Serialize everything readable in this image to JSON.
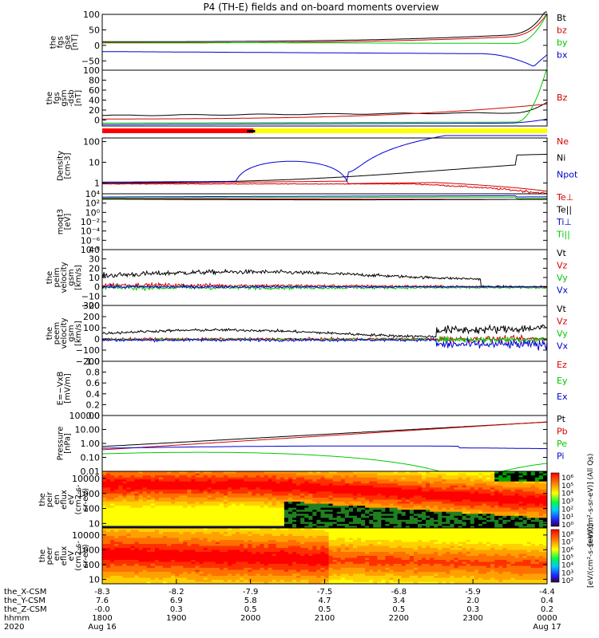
{
  "title": "P4 (TH-E) fields and on-board moments overview",
  "colors": {
    "black": "#000000",
    "red": "#d40000",
    "green": "#00c800",
    "blue": "#0000d0",
    "bar_red": "#ff0000",
    "bar_yellow": "#ffff00"
  },
  "time_axis": {
    "rows": [
      {
        "label": "the_X-CSM",
        "values": [
          "-8.3",
          "-8.2",
          "-7.9",
          "-7.5",
          "-6.8",
          "-5.9",
          "-4.4"
        ]
      },
      {
        "label": "the_Y-CSM",
        "values": [
          "7.6",
          "6.9",
          "5.8",
          "4.7",
          "3.4",
          "2.0",
          "0.4"
        ]
      },
      {
        "label": "the_Z-CSM",
        "values": [
          "-0.0",
          "0.3",
          "0.5",
          "0.5",
          "0.5",
          "0.3",
          "0.2"
        ]
      },
      {
        "label": "hhmm",
        "values": [
          "1800",
          "1900",
          "2000",
          "2100",
          "2200",
          "2300",
          "0000"
        ]
      },
      {
        "label": "2020",
        "values": [
          "Aug 16",
          "",
          "",
          "",
          "",
          "",
          "Aug 17"
        ]
      }
    ]
  },
  "chart_data": [
    {
      "type": "line",
      "id": "fgs",
      "ylabel": [
        "the",
        "fgs",
        "gse",
        "[nT]"
      ],
      "ylim": [
        -80,
        100
      ],
      "yticks": [
        "100",
        "50",
        "0",
        "−50"
      ],
      "ytick_values": [
        100,
        50,
        0,
        -50
      ],
      "legend": [
        "Bt",
        "bz",
        "by",
        "bx"
      ],
      "legend_colors": [
        "black",
        "red",
        "green",
        "blue"
      ]
    },
    {
      "type": "line",
      "id": "fgs-gsm",
      "ylabel": [
        "the",
        "fgs",
        "gsm",
        "-dsb",
        "[nT]"
      ],
      "ylim": [
        -12,
        100
      ],
      "yticks": [
        "100",
        "80",
        "60",
        "40",
        "20",
        "0"
      ],
      "ytick_values": [
        100,
        80,
        60,
        40,
        20,
        0
      ],
      "legend": [
        "Bz"
      ],
      "legend_colors": [
        "red"
      ]
    },
    {
      "type": "line",
      "id": "density",
      "ylabel": [
        "Density",
        "[cm-3]"
      ],
      "scale": "log",
      "ylim": [
        0.3,
        150
      ],
      "yticks": [
        "100",
        "10",
        "1"
      ],
      "ytick_values": [
        100,
        10,
        1
      ],
      "legend": [
        "Ne",
        "Ni",
        "Npot"
      ],
      "legend_colors": [
        "red",
        "black",
        "blue"
      ]
    },
    {
      "type": "line",
      "id": "temperature",
      "ylabel": [
        "moqt3",
        "[eV]"
      ],
      "scale": "log",
      "ylim": [
        1e-08,
        10000
      ],
      "yticks": [
        "10⁴",
        "10²",
        "10⁰",
        "10⁻²",
        "10⁻⁴",
        "10⁻⁶",
        "10⁻⁸"
      ],
      "ytick_values": [
        10000,
        100,
        1,
        0.01,
        0.0001,
        1e-06,
        1e-08
      ],
      "legend": [
        "Te⊥",
        "Te||",
        "Ti⊥",
        "Ti||"
      ],
      "legend_colors": [
        "red",
        "black",
        "blue",
        "green"
      ]
    },
    {
      "type": "line",
      "id": "peim-velocity",
      "ylabel": [
        "the",
        "peim",
        "velocity",
        "gsm",
        "[km/s]"
      ],
      "ylim": [
        -20,
        40
      ],
      "yticks": [
        "40",
        "30",
        "20",
        "10",
        "0",
        "−10",
        "−20"
      ],
      "ytick_values": [
        40,
        30,
        20,
        10,
        0,
        -10,
        -20
      ],
      "legend": [
        "Vt",
        "Vz",
        "Vy",
        "Vx"
      ],
      "legend_colors": [
        "black",
        "red",
        "green",
        "blue"
      ]
    },
    {
      "type": "line",
      "id": "peem-velocity",
      "ylabel": [
        "the",
        "peem",
        "velocity",
        "gsm",
        "[km/s]"
      ],
      "ylim": [
        -200,
        300
      ],
      "yticks": [
        "300",
        "200",
        "100",
        "0",
        "−100",
        "−200"
      ],
      "ytick_values": [
        300,
        200,
        100,
        0,
        -100,
        -200
      ],
      "legend": [
        "Vt",
        "Vz",
        "Vy",
        "Vx"
      ],
      "legend_colors": [
        "black",
        "red",
        "green",
        "blue"
      ]
    },
    {
      "type": "line",
      "id": "efield",
      "ylabel": [
        "E=−VxB",
        "[mV/m]"
      ],
      "ylim": [
        0,
        1
      ],
      "yticks": [
        "1.0",
        "0.8",
        "0.6",
        "0.4",
        "0.2",
        "0.0"
      ],
      "ytick_values": [
        1,
        0.8,
        0.6,
        0.4,
        0.2,
        0
      ],
      "legend": [
        "Ez",
        "Ey",
        "Ex"
      ],
      "legend_colors": [
        "red",
        "green",
        "blue"
      ]
    },
    {
      "type": "line",
      "id": "pressure",
      "ylabel": [
        "Pressure",
        "[nPa]"
      ],
      "scale": "log",
      "ylim": [
        0.01,
        100
      ],
      "yticks": [
        "100.00",
        "10.00",
        "1.00",
        "0.10",
        "0.01"
      ],
      "ytick_values": [
        100,
        10,
        1,
        0.1,
        0.01
      ],
      "legend": [
        "Pt",
        "Pb",
        "Pe",
        "Pi"
      ],
      "legend_colors": [
        "black",
        "red",
        "green",
        "blue"
      ]
    },
    {
      "type": "heatmap",
      "id": "peir",
      "ylabel": [
        "the",
        "peir",
        "en",
        "eflux",
        "eV",
        "(cm2-s-",
        "sr-eV)"
      ],
      "yticks": [
        "10000",
        "1000",
        "100",
        "10"
      ],
      "ytick_values": [
        10000,
        1000,
        100,
        10
      ],
      "colorbar_label": "[eV/(cm²-s-sr-eV)] (All Qs)",
      "colorbar_ticks": [
        "10⁶",
        "10⁵",
        "10⁴",
        "10³",
        "10²",
        "10¹",
        "10⁰"
      ]
    },
    {
      "type": "heatmap",
      "id": "peer",
      "ylabel": [
        "the",
        "peer",
        "en",
        "eflux",
        "eV",
        "(cm2-s-",
        "sr-eV)"
      ],
      "yticks": [
        "10000",
        "1000",
        "100",
        "10"
      ],
      "ytick_values": [
        10000,
        1000,
        100,
        10
      ],
      "colorbar_label": "[eV/(cm²-s-sr-eV)]",
      "colorbar_ticks": [
        "10⁸",
        "10⁷",
        "10⁶",
        "10⁵",
        "10⁴",
        "10³",
        "10²"
      ]
    }
  ]
}
